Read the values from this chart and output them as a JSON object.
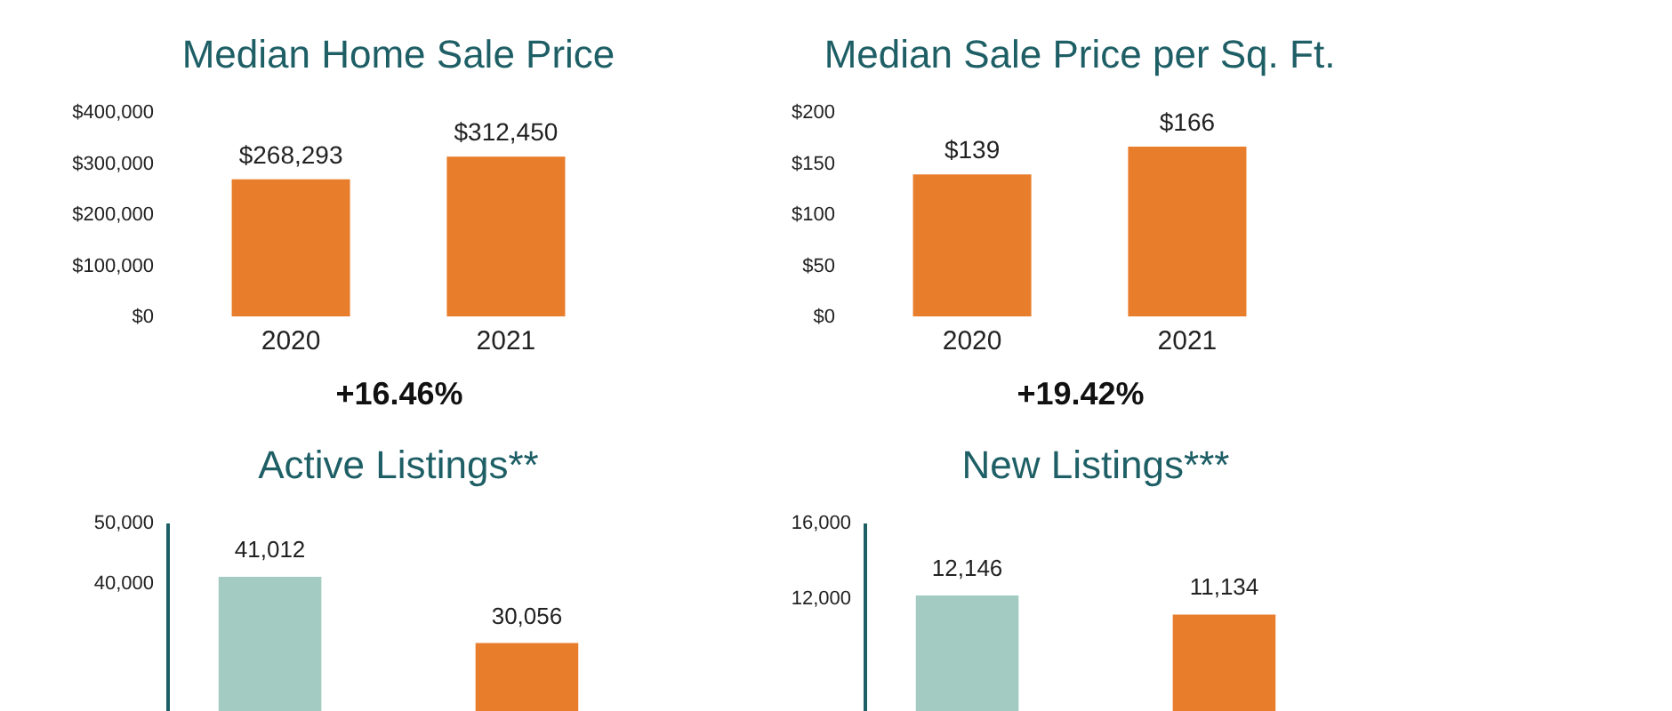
{
  "chart_data": [
    {
      "type": "bar",
      "title": "Median Home Sale Price",
      "categories": [
        "2020",
        "2021"
      ],
      "values": [
        268293,
        312450
      ],
      "value_labels": [
        "$268,293",
        "$312,450"
      ],
      "color": "#e87d2b",
      "ylim": [
        0,
        400000
      ],
      "yticks": [
        {
          "value": 0,
          "label": "$0"
        },
        {
          "value": 100000,
          "label": "$100,000"
        },
        {
          "value": 200000,
          "label": "$200,000"
        },
        {
          "value": 300000,
          "label": "$300,000"
        },
        {
          "value": 400000,
          "label": "$400,000"
        }
      ],
      "annotations": [
        "+16.46%"
      ]
    },
    {
      "type": "bar",
      "title": "Median Sale Price per Sq. Ft.",
      "categories": [
        "2020",
        "2021"
      ],
      "values": [
        139,
        166
      ],
      "value_labels": [
        "$139",
        "$166"
      ],
      "color": "#e87d2b",
      "ylim": [
        0,
        200
      ],
      "yticks": [
        {
          "value": 0,
          "label": "$0"
        },
        {
          "value": 50,
          "label": "$50"
        },
        {
          "value": 100,
          "label": "$100"
        },
        {
          "value": 150,
          "label": "$150"
        },
        {
          "value": 200,
          "label": "$200"
        }
      ],
      "annotations": [
        "+19.42%"
      ]
    },
    {
      "type": "bar",
      "title": "Active Listings**",
      "categories": [
        null,
        null
      ],
      "values": [
        41012,
        30056
      ],
      "value_labels": [
        "41,012",
        "30,056"
      ],
      "colors": [
        "#a3cbc1",
        "#e87d2b"
      ],
      "ylim": [
        0,
        50000
      ],
      "yticks": [
        {
          "value": 40000,
          "label": "40,000"
        },
        {
          "value": 50000,
          "label": "50,000"
        }
      ],
      "tick_labels": "y"
    },
    {
      "type": "bar",
      "title": "New Listings***",
      "categories": [
        null,
        null
      ],
      "values": [
        12146,
        11134
      ],
      "value_labels": [
        "12,146",
        "11,134"
      ],
      "colors": [
        "#a3cbc1",
        "#e87d2b"
      ],
      "ylim": [
        0,
        16000
      ],
      "yticks": [
        {
          "value": 12000,
          "label": "12,000"
        },
        {
          "value": 16000,
          "label": "16,000"
        }
      ],
      "tick_labels": "y"
    }
  ]
}
